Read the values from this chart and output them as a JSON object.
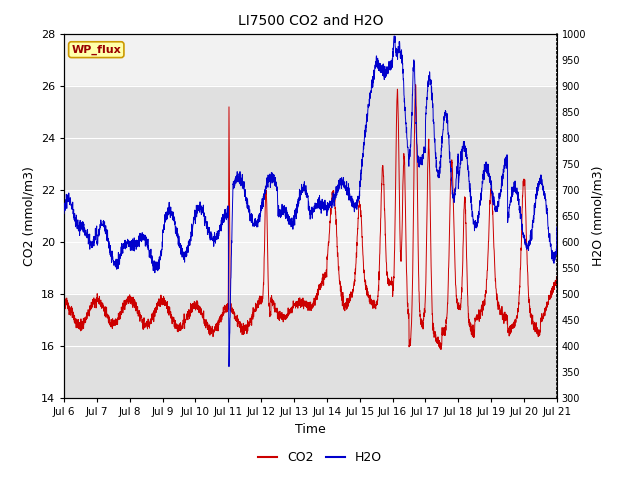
{
  "title": "LI7500 CO2 and H2O",
  "xlabel": "Time",
  "ylabel_left": "CO2 (mmol/m3)",
  "ylabel_right": "H2O (mmol/m3)",
  "ylim_left": [
    14,
    28
  ],
  "ylim_right": [
    300,
    1000
  ],
  "xtick_labels": [
    "Jul 6",
    "Jul 7",
    "Jul 8",
    "Jul 9",
    "Jul 10",
    "Jul 11",
    "Jul 12",
    "Jul 13",
    "Jul 14",
    "Jul 15",
    "Jul 16",
    "Jul 17",
    "Jul 18",
    "Jul 19",
    "Jul 20",
    "Jul 21"
  ],
  "co2_color": "#cc0000",
  "h2o_color": "#0000cc",
  "bg_color": "#f2f2f2",
  "band_dark": "#e0e0e0",
  "annotation_text": "WP_flux",
  "annotation_bg": "#ffffaa",
  "annotation_border": "#cc9900",
  "annotation_text_color": "#990000"
}
